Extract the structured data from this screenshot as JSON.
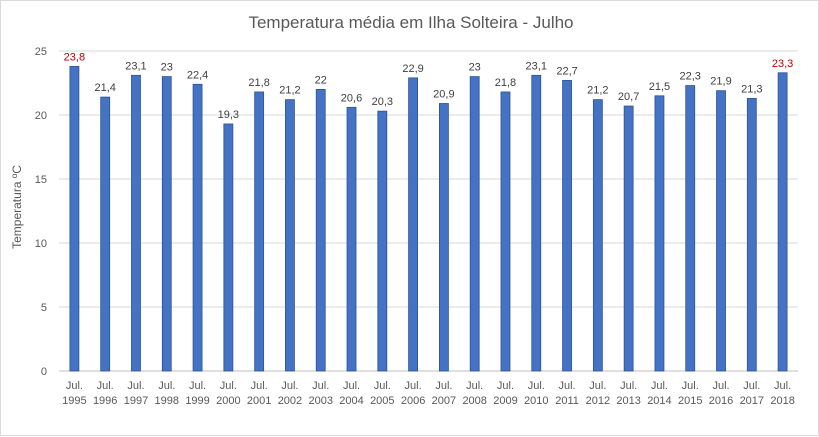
{
  "chart_data": {
    "type": "bar",
    "title": "Temperatura média em  Ilha Solteira - Julho",
    "xlabel": "",
    "ylabel": "Temperatura ºC",
    "ylim": [
      0,
      25
    ],
    "yticks": [
      "0",
      "5",
      "10",
      "15",
      "20",
      "25"
    ],
    "grid": true,
    "legend": "none",
    "bar_color": "#4472c4",
    "bar_edge_color": "#2f528f",
    "highlight_label_color": "#c00000",
    "category_prefix": "Jul.",
    "categories": [
      "1995",
      "1996",
      "1997",
      "1998",
      "1999",
      "2000",
      "2001",
      "2002",
      "2003",
      "2004",
      "2005",
      "2006",
      "2007",
      "2008",
      "2009",
      "2010",
      "2011",
      "2012",
      "2013",
      "2014",
      "2015",
      "2016",
      "2017",
      "2018"
    ],
    "values": [
      23.8,
      21.4,
      23.1,
      23,
      22.4,
      19.3,
      21.8,
      21.2,
      22,
      20.6,
      20.3,
      22.9,
      20.9,
      23,
      21.8,
      23.1,
      22.7,
      21.2,
      20.7,
      21.5,
      22.3,
      21.9,
      21.3,
      23.3
    ],
    "data_labels": [
      "23,8",
      "21,4",
      "23,1",
      "23",
      "22,4",
      "19,3",
      "21,8",
      "21,2",
      "22",
      "20,6",
      "20,3",
      "22,9",
      "20,9",
      "23",
      "21,8",
      "23,1",
      "22,7",
      "21,2",
      "20,7",
      "21,5",
      "22,3",
      "21,9",
      "21,3",
      "23,3"
    ],
    "highlighted": [
      "1995",
      "2018"
    ]
  }
}
